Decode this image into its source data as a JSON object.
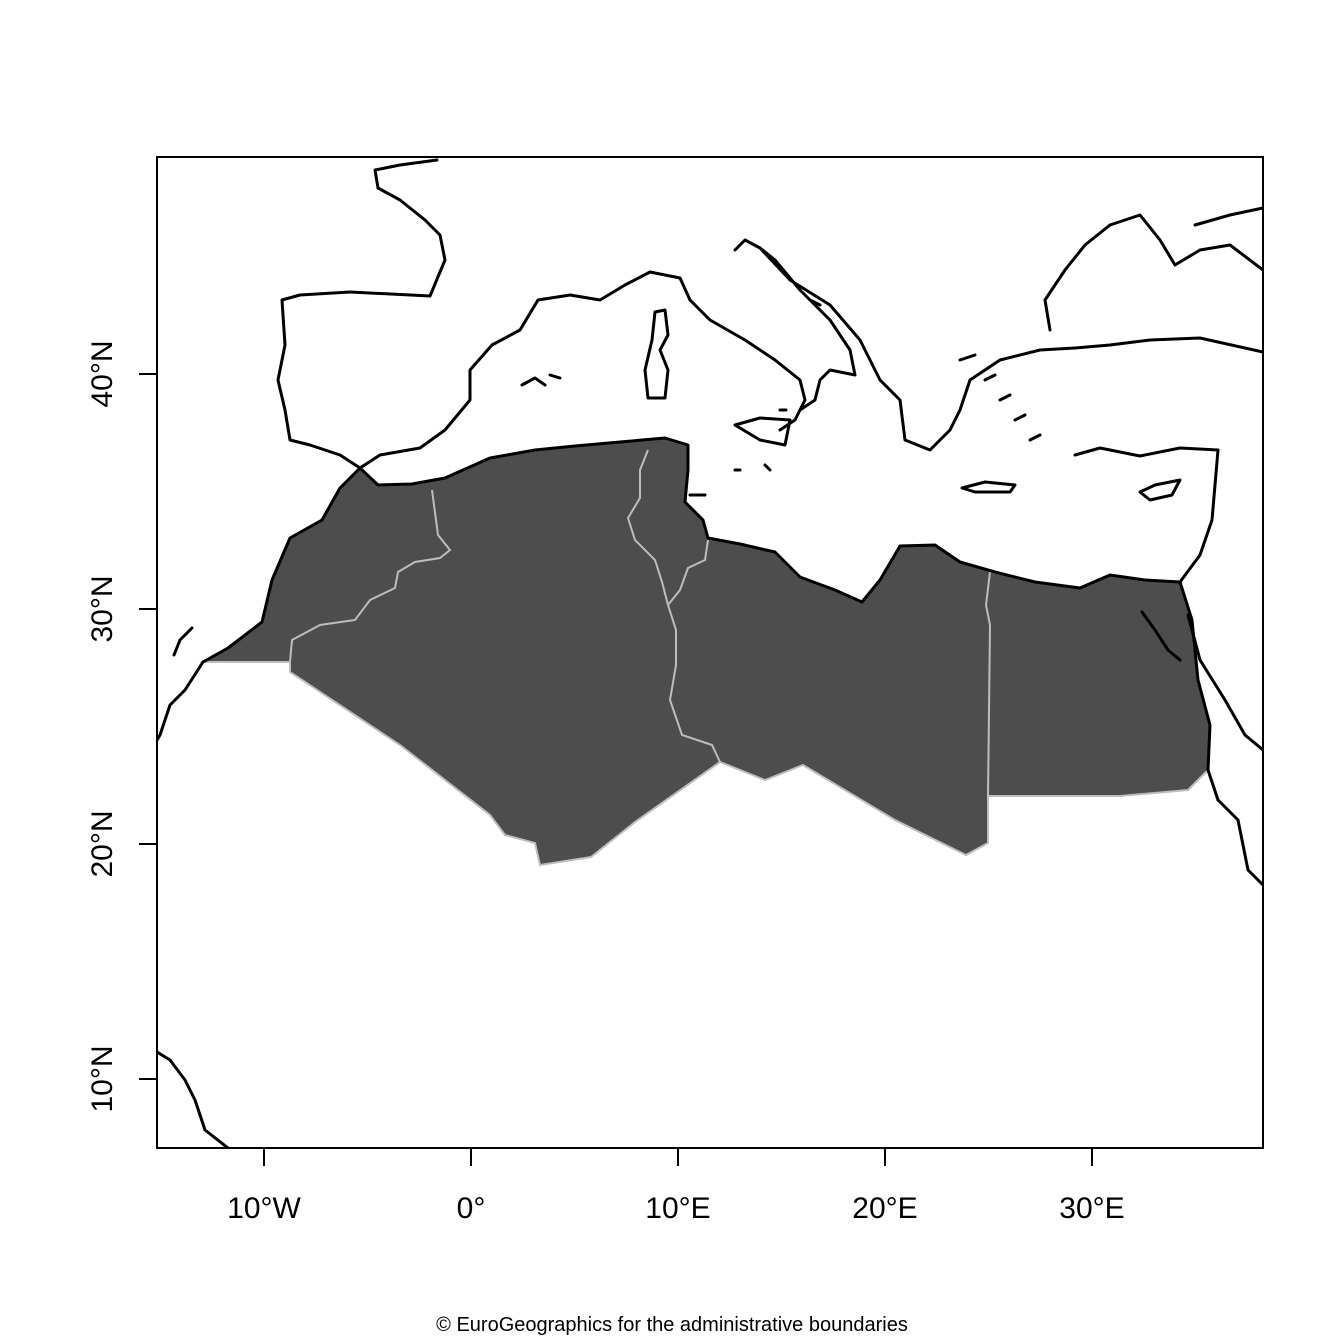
{
  "map": {
    "colors": {
      "highlight_fill": "#4d4d4d",
      "internal_border": "#bdbdbd",
      "coastline": "#000000",
      "background": "#ffffff"
    },
    "x_axis_labels": [
      "10°W",
      "0°",
      "10°E",
      "20°E",
      "30°E"
    ],
    "y_axis_labels": [
      "40°N",
      "30°N",
      "20°N",
      "10°N"
    ],
    "highlighted_countries": [
      "Morocco",
      "Algeria",
      "Tunisia",
      "Libya",
      "Egypt"
    ]
  },
  "credit": "© EuroGeographics for the administrative boundaries"
}
